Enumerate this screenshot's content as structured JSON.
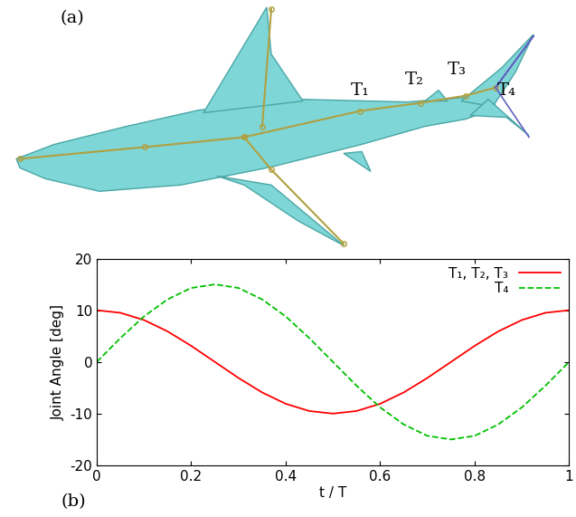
{
  "diagram": {
    "panel_label": "(a)",
    "joint_labels": [
      "T₁",
      "T₂",
      "T₃",
      "T₄"
    ]
  },
  "chart_data": {
    "type": "line",
    "panel_label": "(b)",
    "x_label": "t / T",
    "y_label": "Joint Angle [deg]",
    "x": [
      0,
      0.05,
      0.1,
      0.15,
      0.2,
      0.25,
      0.3,
      0.35,
      0.4,
      0.45,
      0.5,
      0.55,
      0.6,
      0.65,
      0.7,
      0.75,
      0.8,
      0.85,
      0.9,
      0.95,
      1
    ],
    "series": [
      {
        "name": "T₁, T₂, T₃",
        "color": "#ff0000",
        "line_style": "solid",
        "values": [
          10,
          9.5,
          8.1,
          5.9,
          3.1,
          0,
          -3.1,
          -5.9,
          -8.1,
          -9.5,
          -10,
          -9.5,
          -8.1,
          -5.9,
          -3.1,
          0,
          3.1,
          5.9,
          8.1,
          9.5,
          10
        ]
      },
      {
        "name": "T₄",
        "color": "#00c000",
        "line_style": "dashed",
        "values": [
          0,
          4.6,
          8.8,
          12.1,
          14.3,
          15,
          14.3,
          12.1,
          8.8,
          4.6,
          0,
          -4.6,
          -8.8,
          -12.1,
          -14.3,
          -15,
          -14.3,
          -12.1,
          -8.8,
          -4.6,
          0
        ]
      }
    ],
    "xlim": [
      0,
      1
    ],
    "xticks": [
      0,
      0.2,
      0.4,
      0.6,
      0.8,
      1
    ],
    "ylim": [
      -20,
      20
    ],
    "yticks": [
      -20,
      -10,
      0,
      10,
      20
    ],
    "legend": "upper right",
    "grid": false
  }
}
